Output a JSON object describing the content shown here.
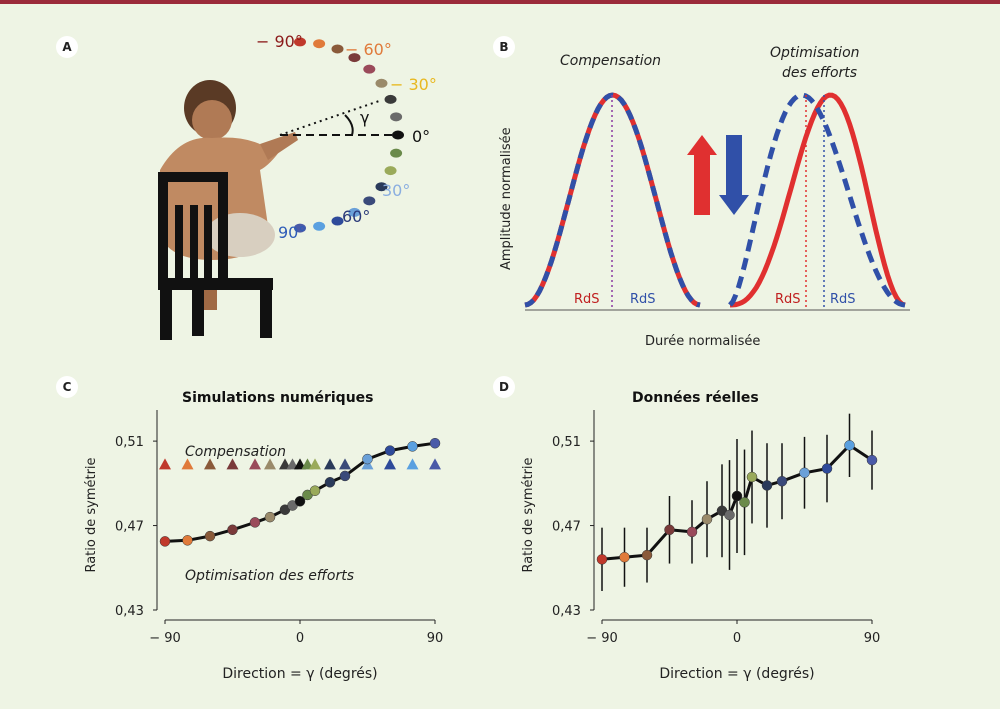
{
  "panels": {
    "a": {
      "letter": "A",
      "angle_labels": [
        {
          "text": "− 90°",
          "color": "#8b1a1a"
        },
        {
          "text": "− 60°",
          "color": "#e07a3a"
        },
        {
          "text": "− 30°",
          "color": "#f2c230"
        },
        {
          "text": "0°",
          "color": "#111111"
        },
        {
          "text": "30°",
          "color": "#8aaee0"
        },
        {
          "text": "60°",
          "color": "#2b3a7a"
        },
        {
          "text": "90°",
          "color": "#2e5cb8"
        }
      ],
      "gamma": "γ"
    },
    "b": {
      "letter": "B",
      "title_left": "Compensation",
      "title_right_1": "Optimisation",
      "title_right_2": "des efforts",
      "ylabel": "Amplitude normalisée",
      "xlabel": "Durée normalisée",
      "rds": "RdS"
    },
    "c": {
      "letter": "C"
    },
    "d": {
      "letter": "D"
    }
  },
  "colors": {
    "red": "#e03030",
    "blue": "#3050a8",
    "accent_bar": "#9b2b3a",
    "background": "#eef4e4"
  },
  "chart_data": [
    {
      "panel": "C",
      "type": "scatter",
      "title": "Simulations numériques",
      "xlabel": "Direction = γ (degrés)",
      "ylabel": "Ratio de symétrie",
      "xlim": [
        -90,
        90
      ],
      "ylim": [
        0.43,
        0.52
      ],
      "xticks": [
        -90,
        0,
        90
      ],
      "yticks": [
        0.43,
        0.47,
        0.51
      ],
      "xtick_labels": [
        "− 90",
        "0",
        "90"
      ],
      "ytick_labels": [
        "0,43",
        "0,47",
        "0,51"
      ],
      "annotations": [
        "Compensation",
        "Optimisation des efforts"
      ],
      "series": [
        {
          "name": "Compensation",
          "marker": "triangle",
          "x": [
            -90,
            -75,
            -60,
            -45,
            -30,
            -20,
            -10,
            -5,
            0,
            5,
            10,
            20,
            30,
            45,
            60,
            75,
            90
          ],
          "y": [
            0.499,
            0.499,
            0.499,
            0.499,
            0.499,
            0.499,
            0.499,
            0.499,
            0.499,
            0.499,
            0.499,
            0.499,
            0.499,
            0.499,
            0.499,
            0.499,
            0.499
          ]
        },
        {
          "name": "Optimisation des efforts",
          "marker": "circle",
          "x": [
            -90,
            -75,
            -60,
            -45,
            -30,
            -20,
            -10,
            -5,
            0,
            5,
            10,
            20,
            30,
            45,
            60,
            75,
            90
          ],
          "y": [
            0.4625,
            0.463,
            0.465,
            0.468,
            0.4715,
            0.474,
            0.4775,
            0.4795,
            0.4815,
            0.4845,
            0.4865,
            0.4905,
            0.4935,
            0.5015,
            0.5055,
            0.5075,
            0.509
          ]
        }
      ],
      "colors": [
        "#c0392b",
        "#e07a3a",
        "#8a5a3a",
        "#7a3a3a",
        "#9a4a5a",
        "#9a8a6a",
        "#3a3a3a",
        "#6a6a6a",
        "#111111",
        "#6a8a4a",
        "#9aaa5a",
        "#2a3a5a",
        "#3a4a7a",
        "#6aa0d8",
        "#2e4a9a",
        "#5aa0e0",
        "#4a5aa8"
      ],
      "fit_curve": true
    },
    {
      "panel": "D",
      "type": "scatter",
      "title": "Données réelles",
      "xlabel": "Direction = γ (degrés)",
      "ylabel": "Ratio de symétrie",
      "xlim": [
        -90,
        90
      ],
      "ylim": [
        0.43,
        0.52
      ],
      "xticks": [
        -90,
        0,
        90
      ],
      "yticks": [
        0.43,
        0.47,
        0.51
      ],
      "xtick_labels": [
        "− 90",
        "0",
        "90"
      ],
      "ytick_labels": [
        "0,43",
        "0,47",
        "0,51"
      ],
      "series": [
        {
          "name": "",
          "marker": "circle",
          "x": [
            -90,
            -75,
            -60,
            -45,
            -30,
            -20,
            -10,
            -5,
            0,
            5,
            10,
            20,
            30,
            45,
            60,
            75,
            90
          ],
          "y": [
            0.454,
            0.455,
            0.456,
            0.468,
            0.467,
            0.473,
            0.477,
            0.475,
            0.484,
            0.481,
            0.493,
            0.489,
            0.491,
            0.495,
            0.497,
            0.508,
            0.501
          ],
          "err": [
            0.015,
            0.014,
            0.013,
            0.016,
            0.015,
            0.018,
            0.022,
            0.026,
            0.027,
            0.025,
            0.022,
            0.02,
            0.018,
            0.017,
            0.016,
            0.015,
            0.014
          ]
        }
      ],
      "colors": [
        "#c0392b",
        "#e07a3a",
        "#8a5a3a",
        "#7a3a3a",
        "#9a4a5a",
        "#9a8a6a",
        "#3a3a3a",
        "#6a6a6a",
        "#111111",
        "#6a8a4a",
        "#9aaa5a",
        "#2a3a5a",
        "#3a4a7a",
        "#6aa0d8",
        "#2e4a9a",
        "#5aa0e0",
        "#4a5aa8"
      ],
      "fit_curve": true
    }
  ]
}
